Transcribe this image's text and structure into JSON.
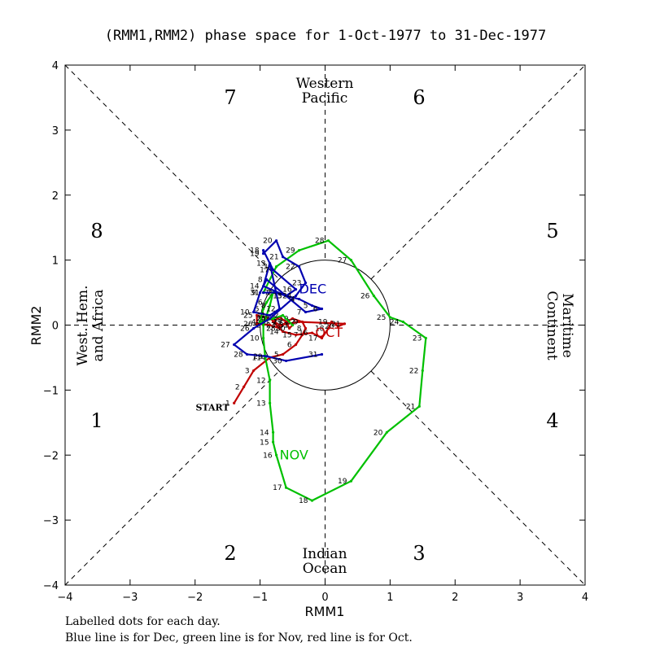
{
  "title": "(RMM1,RMM2) phase space for  1-Oct-1977 to 31-Dec-1977",
  "xlabel": "RMM1",
  "ylabel": "RMM2",
  "footer": {
    "line1": "Labelled dots for each day.",
    "line2": "Blue line is for Dec, green line is for Nov, red line is for Oct."
  },
  "phases": [
    "1",
    "2",
    "3",
    "4",
    "5",
    "6",
    "7",
    "8"
  ],
  "regions": {
    "top1": "Western",
    "top2": "Pacific",
    "bottom1": "Indian",
    "bottom2": "Ocean",
    "left1": "West. Hem.",
    "left2": "and Africa",
    "right1": "Maritime",
    "right2": "Continent"
  },
  "start_label": "START",
  "colors": {
    "oct": "#c00000",
    "nov": "#00c000",
    "dec": "#0000b0",
    "axis": "#000000"
  },
  "chart_data": {
    "type": "line",
    "title": "(RMM1,RMM2) phase space for  1-Oct-1977 to 31-Dec-1977",
    "xlabel": "RMM1",
    "ylabel": "RMM2",
    "xlim": [
      -4,
      4
    ],
    "ylim": [
      -4,
      4
    ],
    "xticks": [
      -4,
      -3,
      -2,
      -1,
      0,
      1,
      2,
      3,
      4
    ],
    "yticks": [
      -4,
      -3,
      -2,
      -1,
      0,
      1,
      2,
      3,
      4
    ],
    "unit_circle_radius": 1,
    "series": [
      {
        "name": "Oct",
        "month_label": "OCT",
        "color": "#c00000",
        "points": [
          {
            "day": "1",
            "x": -1.4,
            "y": -1.2
          },
          {
            "day": "2",
            "x": -1.25,
            "y": -0.95
          },
          {
            "day": "3",
            "x": -1.1,
            "y": -0.7
          },
          {
            "day": "4",
            "x": -0.85,
            "y": -0.5
          },
          {
            "day": "5",
            "x": -0.65,
            "y": -0.45
          },
          {
            "day": "6",
            "x": -0.45,
            "y": -0.3
          },
          {
            "day": "7",
            "x": -0.35,
            "y": -0.15
          },
          {
            "day": "8",
            "x": -0.3,
            "y": -0.05
          },
          {
            "day": "9",
            "x": -0.35,
            "y": 0.05
          },
          {
            "day": "10",
            "x": -0.5,
            "y": 0.1
          },
          {
            "day": "11",
            "x": -0.6,
            "y": 0.05
          },
          {
            "day": "12",
            "x": -0.7,
            "y": 0.12
          },
          {
            "day": "13",
            "x": -0.8,
            "y": 0.05
          },
          {
            "day": "14",
            "x": -0.65,
            "y": -0.1
          },
          {
            "day": "15",
            "x": -0.45,
            "y": -0.15
          },
          {
            "day": "16",
            "x": -0.2,
            "y": -0.12
          },
          {
            "day": "17",
            "x": -0.05,
            "y": -0.2
          },
          {
            "day": "18",
            "x": 0.05,
            "y": -0.05
          },
          {
            "day": "19",
            "x": 0.1,
            "y": 0.05
          },
          {
            "day": "20",
            "x": 0.2,
            "y": -0.02
          },
          {
            "day": "21",
            "x": 0.3,
            "y": 0.02
          },
          {
            "day": "22",
            "x": -0.4,
            "y": 0.05
          },
          {
            "day": "23",
            "x": -0.7,
            "y": 0.0
          },
          {
            "day": "24",
            "x": -0.85,
            "y": 0.1
          },
          {
            "day": "25",
            "x": -1.05,
            "y": 0.15
          },
          {
            "day": "26",
            "x": -1.05,
            "y": 0.02
          },
          {
            "day": "27",
            "x": -0.85,
            "y": 0.0
          },
          {
            "day": "28",
            "x": -0.7,
            "y": -0.05
          },
          {
            "day": "29",
            "x": -0.6,
            "y": 0.05
          },
          {
            "day": "30",
            "x": -0.55,
            "y": -0.05
          },
          {
            "day": "31",
            "x": -0.5,
            "y": 0.0
          }
        ]
      },
      {
        "name": "Nov",
        "month_label": "NOV",
        "color": "#00c000",
        "points": [
          {
            "day": "1",
            "x": -0.5,
            "y": 0.0
          },
          {
            "day": "2",
            "x": -0.65,
            "y": 0.15
          },
          {
            "day": "3",
            "x": -0.8,
            "y": 0.1
          },
          {
            "day": "4",
            "x": -1.0,
            "y": 0.05
          },
          {
            "day": "5",
            "x": -0.95,
            "y": 0.25
          },
          {
            "day": "6",
            "x": -0.9,
            "y": 0.35
          },
          {
            "day": "7",
            "x": -0.8,
            "y": 0.5
          },
          {
            "day": "8",
            "x": -0.85,
            "y": 0.3
          },
          {
            "day": "9",
            "x": -0.95,
            "y": 0.0
          },
          {
            "day": "10",
            "x": -0.95,
            "y": -0.2
          },
          {
            "day": "11",
            "x": -0.92,
            "y": -0.5
          },
          {
            "day": "12",
            "x": -0.85,
            "y": -0.85
          },
          {
            "day": "13",
            "x": -0.85,
            "y": -1.2
          },
          {
            "day": "14",
            "x": -0.8,
            "y": -1.65
          },
          {
            "day": "15",
            "x": -0.8,
            "y": -1.8
          },
          {
            "day": "16",
            "x": -0.75,
            "y": -2.0
          },
          {
            "day": "17",
            "x": -0.6,
            "y": -2.5
          },
          {
            "day": "18",
            "x": -0.2,
            "y": -2.7
          },
          {
            "day": "19",
            "x": 0.4,
            "y": -2.4
          },
          {
            "day": "20",
            "x": 0.95,
            "y": -1.65
          },
          {
            "day": "21",
            "x": 1.45,
            "y": -1.25
          },
          {
            "day": "22",
            "x": 1.5,
            "y": -0.7
          },
          {
            "day": "23",
            "x": 1.55,
            "y": -0.2
          },
          {
            "day": "24",
            "x": 1.2,
            "y": 0.05
          },
          {
            "day": "25",
            "x": 1.0,
            "y": 0.12
          },
          {
            "day": "26",
            "x": 0.75,
            "y": 0.45
          },
          {
            "day": "27",
            "x": 0.4,
            "y": 1.0
          },
          {
            "day": "28",
            "x": 0.05,
            "y": 1.3
          },
          {
            "day": "29",
            "x": -0.4,
            "y": 1.15
          },
          {
            "day": "30",
            "x": -0.75,
            "y": 0.9
          },
          {
            "day": "31",
            "x": -0.95,
            "y": 0.5
          }
        ]
      },
      {
        "name": "Dec",
        "month_label": "DEC",
        "color": "#0000b0",
        "points": [
          {
            "day": "1",
            "x": -0.95,
            "y": 0.5
          },
          {
            "day": "2",
            "x": -0.75,
            "y": 0.5
          },
          {
            "day": "3",
            "x": -0.6,
            "y": 0.45
          },
          {
            "day": "4",
            "x": -0.4,
            "y": 0.4
          },
          {
            "day": "5",
            "x": -0.2,
            "y": 0.3
          },
          {
            "day": "6",
            "x": -0.05,
            "y": 0.25
          },
          {
            "day": "7",
            "x": -0.3,
            "y": 0.2
          },
          {
            "day": "8",
            "x": -0.9,
            "y": 0.7
          },
          {
            "day": "9",
            "x": -1.0,
            "y": 0.5
          },
          {
            "day": "10",
            "x": -1.1,
            "y": 0.2
          },
          {
            "day": "11",
            "x": -0.85,
            "y": 0.15
          },
          {
            "day": "12",
            "x": -0.7,
            "y": 0.25
          },
          {
            "day": "13",
            "x": -0.85,
            "y": 0.95
          },
          {
            "day": "14",
            "x": -0.95,
            "y": 0.6
          },
          {
            "day": "15",
            "x": -0.6,
            "y": 0.45
          },
          {
            "day": "16",
            "x": -0.45,
            "y": 0.55
          },
          {
            "day": "17",
            "x": -0.8,
            "y": 0.85
          },
          {
            "day": "18",
            "x": -0.95,
            "y": 1.15
          },
          {
            "day": "19",
            "x": -0.95,
            "y": 1.1
          },
          {
            "day": "20",
            "x": -0.75,
            "y": 1.3
          },
          {
            "day": "21",
            "x": -0.65,
            "y": 1.05
          },
          {
            "day": "22",
            "x": -0.4,
            "y": 0.9
          },
          {
            "day": "23",
            "x": -0.3,
            "y": 0.65
          },
          {
            "day": "24",
            "x": -0.45,
            "y": 0.45
          },
          {
            "day": "25",
            "x": -0.85,
            "y": 0.1
          },
          {
            "day": "26",
            "x": -1.1,
            "y": -0.05
          },
          {
            "day": "27",
            "x": -1.4,
            "y": -0.3
          },
          {
            "day": "28",
            "x": -1.2,
            "y": -0.45
          },
          {
            "day": "29",
            "x": -0.9,
            "y": -0.48
          },
          {
            "day": "30",
            "x": -0.6,
            "y": -0.55
          },
          {
            "day": "31",
            "x": -0.05,
            "y": -0.45
          }
        ]
      }
    ]
  }
}
